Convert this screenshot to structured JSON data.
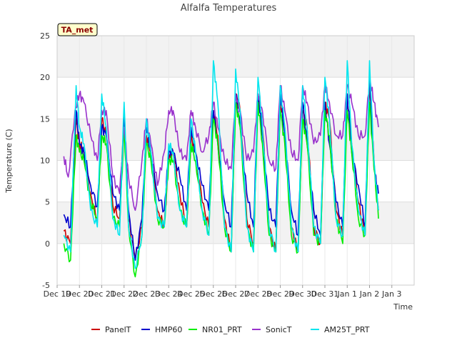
{
  "chart_data": {
    "type": "line",
    "title": "Alfalfa Temperatures",
    "xlabel": "Time",
    "ylabel": "Temperature (C)",
    "badge": "TA_met",
    "ylim": [
      -5,
      25
    ],
    "yticks": [
      -5,
      0,
      5,
      10,
      15,
      20,
      25
    ],
    "xlim": [
      0,
      16
    ],
    "xticks": [
      {
        "x": 0,
        "label": "Dec 19"
      },
      {
        "x": 1,
        "label": "Dec 20"
      },
      {
        "x": 2,
        "label": "Dec 21"
      },
      {
        "x": 3,
        "label": "Dec 22"
      },
      {
        "x": 4,
        "label": "Dec 23"
      },
      {
        "x": 5,
        "label": "Dec 24"
      },
      {
        "x": 6,
        "label": "Dec 25"
      },
      {
        "x": 7,
        "label": "Dec 26"
      },
      {
        "x": 8,
        "label": "Dec 27"
      },
      {
        "x": 9,
        "label": "Dec 28"
      },
      {
        "x": 10,
        "label": "Dec 29"
      },
      {
        "x": 11,
        "label": "Dec 30"
      },
      {
        "x": 12,
        "label": "Dec 31"
      },
      {
        "x": 13,
        "label": "Jan 1"
      },
      {
        "x": 14,
        "label": "Jan 2"
      },
      {
        "x": 15,
        "label": "Jan 3"
      }
    ],
    "grid": true,
    "legend_position": "bottom",
    "x_description": "days since Dec 19 00:00",
    "series": [
      {
        "name": "PanelT",
        "color": "#cc0000",
        "x": [
          0.3,
          0.6,
          0.85,
          1.0,
          1.2,
          1.5,
          1.8,
          2.0,
          2.2,
          2.5,
          2.8,
          3.0,
          3.2,
          3.5,
          3.8,
          4.0,
          4.2,
          4.5,
          4.8,
          5.0,
          5.2,
          5.5,
          5.8,
          6.0,
          6.2,
          6.5,
          6.8,
          7.0,
          7.2,
          7.5,
          7.8,
          8.0,
          8.2,
          8.5,
          8.8,
          9.0,
          9.2,
          9.5,
          9.8,
          10.0,
          10.2,
          10.5,
          10.8,
          11.0,
          11.2,
          11.5,
          11.8,
          12.0,
          12.2,
          12.5,
          12.8,
          13.0,
          13.2,
          13.5,
          13.8,
          14.0,
          14.2,
          14.4
        ],
        "y": [
          1.5,
          0,
          15,
          12,
          11,
          6,
          2.5,
          15,
          13,
          4.5,
          3,
          16,
          3,
          -2,
          2,
          13,
          11,
          4,
          2,
          10,
          11,
          6,
          2,
          13,
          11,
          5,
          2,
          16,
          13,
          3,
          -1,
          18,
          16,
          3,
          0,
          18,
          14,
          2,
          -1,
          17,
          14,
          2,
          -1,
          16,
          14,
          2,
          0,
          17,
          15,
          4,
          1,
          18,
          12,
          5,
          1,
          19,
          10,
          4
        ]
      },
      {
        "name": "HMP60",
        "color": "#0000cc",
        "x": [
          0.3,
          0.6,
          0.85,
          1.0,
          1.2,
          1.5,
          1.8,
          2.0,
          2.2,
          2.5,
          2.8,
          3.0,
          3.2,
          3.5,
          3.8,
          4.0,
          4.2,
          4.5,
          4.8,
          5.0,
          5.2,
          5.5,
          5.8,
          6.0,
          6.2,
          6.5,
          6.8,
          7.0,
          7.2,
          7.5,
          7.8,
          8.0,
          8.2,
          8.5,
          8.8,
          9.0,
          9.2,
          9.5,
          9.8,
          10.0,
          10.2,
          10.5,
          10.8,
          11.0,
          11.2,
          11.5,
          11.8,
          12.0,
          12.2,
          12.5,
          12.8,
          13.0,
          13.2,
          13.5,
          13.8,
          14.0,
          14.2,
          14.4
        ],
        "y": [
          3.5,
          2,
          16,
          12,
          11,
          7,
          4.5,
          14,
          13,
          6,
          4,
          15,
          4,
          -2,
          3,
          14,
          11,
          6,
          4,
          11,
          11,
          8,
          4,
          14,
          11,
          7,
          4,
          16,
          12,
          5,
          2,
          18,
          14,
          6,
          2,
          18,
          13,
          4,
          2,
          18,
          13,
          4,
          1,
          17,
          12,
          4,
          1,
          17,
          12,
          5,
          2,
          18,
          11,
          7,
          2,
          20,
          9,
          6
        ]
      },
      {
        "name": "NR01_PRT",
        "color": "#00ee00",
        "x": [
          0.3,
          0.6,
          0.85,
          1.0,
          1.2,
          1.5,
          1.8,
          2.0,
          2.2,
          2.5,
          2.8,
          3.0,
          3.2,
          3.5,
          3.8,
          4.0,
          4.2,
          4.5,
          4.8,
          5.0,
          5.2,
          5.5,
          5.8,
          6.0,
          6.2,
          6.5,
          6.8,
          7.0,
          7.2,
          7.5,
          7.8,
          8.0,
          8.2,
          8.5,
          8.8,
          9.0,
          9.2,
          9.5,
          9.8,
          10.0,
          10.2,
          10.5,
          10.8,
          11.0,
          11.2,
          11.5,
          11.8,
          12.0,
          12.2,
          12.5,
          12.8,
          13.0,
          13.2,
          13.5,
          13.8,
          14.0,
          14.2,
          14.4
        ],
        "y": [
          0,
          -2,
          13,
          11,
          10,
          5,
          3,
          13,
          12,
          3,
          2,
          14,
          2,
          -4,
          1,
          12,
          10,
          3,
          2,
          10,
          10,
          4,
          2,
          12,
          10,
          4,
          1,
          15,
          12,
          2,
          -1,
          17,
          14,
          2,
          -1,
          17,
          12,
          1,
          -1,
          16,
          12,
          1,
          -1,
          15,
          12,
          1,
          0,
          16,
          13,
          3,
          0,
          16,
          11,
          3,
          1,
          17,
          9,
          3
        ]
      },
      {
        "name": "SonicT",
        "color": "#9932cc",
        "x": [
          0.3,
          0.5,
          0.8,
          1.0,
          1.2,
          1.5,
          1.8,
          2.0,
          2.2,
          2.5,
          2.8,
          3.0,
          3.2,
          3.5,
          3.8,
          4.0,
          4.2,
          4.5,
          4.8,
          5.0,
          5.2,
          5.5,
          5.8,
          6.0,
          6.2,
          6.5,
          6.8,
          7.0,
          7.2,
          7.5,
          7.8,
          8.0,
          8.2,
          8.5,
          8.8,
          9.0,
          9.2,
          9.5,
          9.8,
          10.0,
          10.2,
          10.5,
          10.8,
          11.0,
          11.2,
          11.5,
          11.8,
          12.0,
          12.2,
          12.5,
          12.8,
          13.0,
          13.2,
          13.5,
          13.8,
          14.0,
          14.2,
          14.4
        ],
        "y": [
          10.5,
          8,
          16,
          18,
          17,
          13,
          10,
          16,
          16,
          8,
          6,
          14,
          8,
          4,
          10,
          15,
          12,
          7,
          11,
          16,
          16,
          11,
          10,
          16,
          14,
          11,
          13,
          17,
          14,
          10,
          9,
          18,
          16,
          10,
          11,
          18,
          16,
          10,
          9,
          19,
          16,
          11,
          10,
          19,
          17,
          12,
          13,
          19,
          17,
          13,
          13,
          19,
          17,
          13,
          13,
          20,
          17,
          14
        ]
      },
      {
        "name": "AM25T_PRT",
        "color": "#00e5ee",
        "x": [
          0.3,
          0.6,
          0.85,
          1.0,
          1.2,
          1.5,
          1.8,
          2.0,
          2.2,
          2.5,
          2.8,
          3.0,
          3.2,
          3.5,
          3.8,
          4.0,
          4.2,
          4.5,
          4.8,
          5.0,
          5.2,
          5.5,
          5.8,
          6.0,
          6.2,
          6.5,
          6.8,
          7.0,
          7.2,
          7.5,
          7.8,
          8.0,
          8.2,
          8.5,
          8.8,
          9.0,
          9.2,
          9.5,
          9.8,
          10.0,
          10.2,
          10.5,
          10.8,
          11.0,
          11.2,
          11.5,
          11.8,
          12.0,
          12.2,
          12.5,
          12.8,
          13.0,
          13.2,
          13.5,
          13.8,
          14.0,
          14.2,
          14.4
        ],
        "y": [
          1,
          -1,
          19,
          14,
          12,
          4,
          2,
          18,
          14,
          3,
          1,
          17,
          2,
          -3,
          1,
          15,
          11,
          3,
          2,
          12,
          11,
          4,
          2,
          15,
          11,
          4,
          1,
          22,
          17,
          2,
          -1,
          21,
          16,
          2,
          -1,
          20,
          14,
          2,
          -1,
          19,
          14,
          2,
          -1,
          19,
          14,
          2,
          0,
          20,
          15,
          3,
          1,
          22,
          12,
          4,
          1,
          22,
          10,
          4
        ]
      }
    ]
  }
}
